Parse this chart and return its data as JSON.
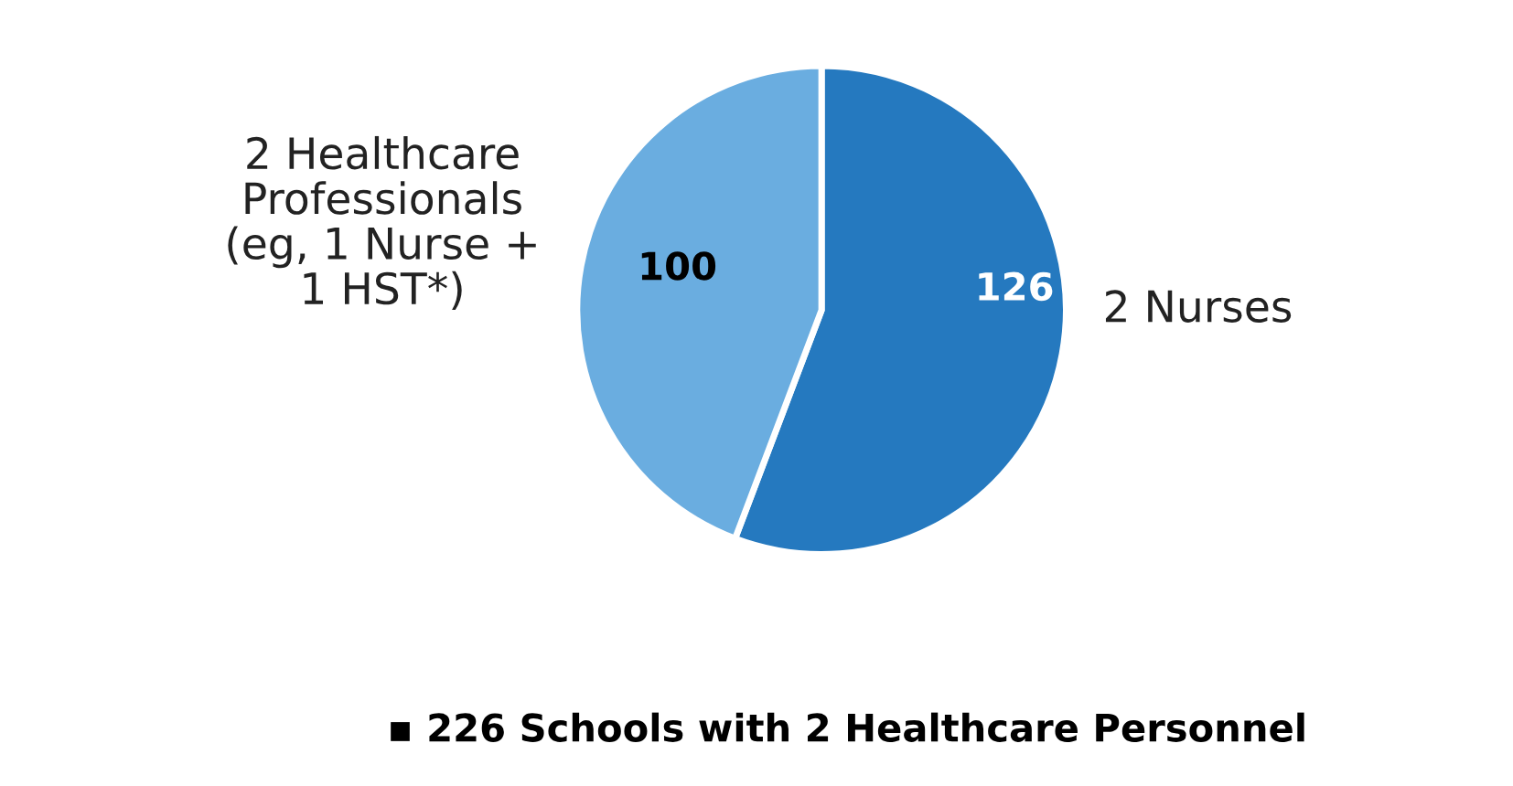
{
  "chart_data": {
    "type": "pie",
    "categories": [
      "2 Nurses",
      "2 Healthcare\nProfessionals\n(eg, 1 Nurse +\n1 HST*)"
    ],
    "values": [
      126,
      100
    ],
    "colors": [
      "#2579bf",
      "#6aade0"
    ],
    "data_labels": true,
    "legend": false,
    "annotations": [
      "▪ 226 Schools with 2 Healthcare Personnel"
    ]
  }
}
